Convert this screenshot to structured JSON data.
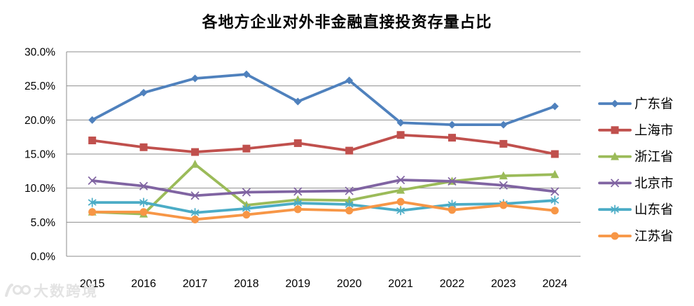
{
  "watermark": {
    "text": "大数跨境"
  },
  "chart_data": {
    "type": "line",
    "title": "各地方企业对外非金融直接投资存量占比",
    "xlabel": "",
    "ylabel": "",
    "categories": [
      "2015",
      "2016",
      "2017",
      "2018",
      "2019",
      "2020",
      "2021",
      "2022",
      "2023",
      "2024"
    ],
    "ylim": [
      0,
      30
    ],
    "y_tick_values": [
      30,
      25,
      20,
      15,
      10,
      5,
      0
    ],
    "y_tick_labels": [
      "30.0%",
      "25.0%",
      "20.0%",
      "15.0%",
      "10.0%",
      "5.0%",
      "0.0%"
    ],
    "grid": true,
    "grid_color": "#8e8e8e",
    "axis_text_color": "#000000",
    "legend_position": "right",
    "unit": "percent",
    "series": [
      {
        "id": "guangdong",
        "name": "广东省",
        "color": "#4F81BD",
        "marker": "diamond",
        "values": [
          20.0,
          24.0,
          26.1,
          26.7,
          22.7,
          25.8,
          19.6,
          19.3,
          19.3,
          22.0
        ]
      },
      {
        "id": "shanghai",
        "name": "上海市",
        "color": "#C0504D",
        "marker": "square",
        "values": [
          17.0,
          16.0,
          15.3,
          15.8,
          16.6,
          15.5,
          17.8,
          17.4,
          16.5,
          15.0
        ]
      },
      {
        "id": "zhejiang",
        "name": "浙江省",
        "color": "#9BBB59",
        "marker": "triangle",
        "values": [
          6.5,
          6.2,
          13.5,
          7.5,
          8.3,
          8.2,
          9.7,
          11.0,
          11.8,
          12.0
        ]
      },
      {
        "id": "beijing",
        "name": "北京市",
        "color": "#8064A2",
        "marker": "x",
        "values": [
          11.1,
          10.3,
          8.9,
          9.4,
          9.5,
          9.6,
          11.2,
          11.0,
          10.4,
          9.5
        ]
      },
      {
        "id": "shandong",
        "name": "山东省",
        "color": "#4BACC6",
        "marker": "asterisk",
        "values": [
          7.9,
          7.9,
          6.4,
          7.0,
          7.8,
          7.6,
          6.7,
          7.6,
          7.7,
          8.2
        ]
      },
      {
        "id": "jiangsu",
        "name": "江苏省",
        "color": "#F79646",
        "marker": "circle",
        "values": [
          6.5,
          6.5,
          5.4,
          6.1,
          6.9,
          6.7,
          8.0,
          6.8,
          7.5,
          6.7
        ]
      }
    ]
  }
}
